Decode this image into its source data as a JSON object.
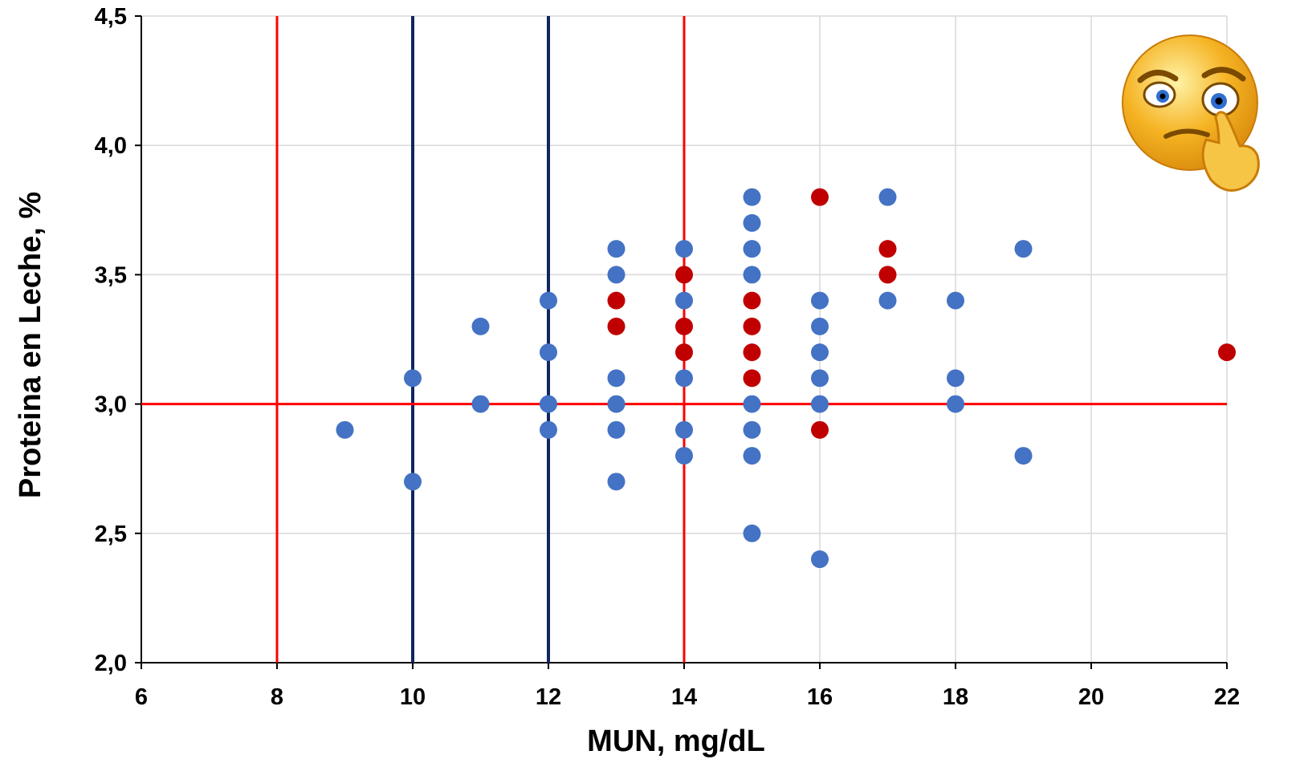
{
  "chart_data": {
    "type": "scatter",
    "title": "",
    "xlabel": "MUN, mg/dL",
    "ylabel": "Proteina en Leche, %",
    "xlim": [
      6,
      22
    ],
    "ylim": [
      2.0,
      4.5
    ],
    "x_ticks": [
      6,
      8,
      10,
      12,
      14,
      16,
      18,
      20,
      22
    ],
    "x_tick_labels": [
      "6",
      "8",
      "10",
      "12",
      "14",
      "16",
      "18",
      "20",
      "22"
    ],
    "y_ticks": [
      2.0,
      2.5,
      3.0,
      3.5,
      4.0,
      4.5
    ],
    "y_tick_labels": [
      "2,0",
      "2,5",
      "3,0",
      "3,5",
      "4,0",
      "4,5"
    ],
    "grid": true,
    "legend": "none",
    "reference_lines": [
      {
        "axis": "x",
        "value": 8,
        "color": "#ff0000"
      },
      {
        "axis": "x",
        "value": 14,
        "color": "#ff0000"
      },
      {
        "axis": "x",
        "value": 10,
        "color": "#0f2660"
      },
      {
        "axis": "x",
        "value": 12,
        "color": "#0f2660"
      },
      {
        "axis": "y",
        "value": 3.0,
        "color": "#ff0000"
      }
    ],
    "series": [
      {
        "color": "#4472c4",
        "points": [
          [
            9,
            2.9
          ],
          [
            10,
            3.1
          ],
          [
            10,
            2.7
          ],
          [
            11,
            3.3
          ],
          [
            11,
            3.0
          ],
          [
            12,
            3.4
          ],
          [
            12,
            3.2
          ],
          [
            12,
            3.0
          ],
          [
            12,
            2.9
          ],
          [
            13,
            3.6
          ],
          [
            13,
            3.5
          ],
          [
            13,
            3.1
          ],
          [
            13,
            3.0
          ],
          [
            13,
            2.9
          ],
          [
            13,
            2.7
          ],
          [
            14,
            3.6
          ],
          [
            14,
            3.4
          ],
          [
            14,
            3.1
          ],
          [
            14,
            2.9
          ],
          [
            14,
            2.8
          ],
          [
            15,
            3.8
          ],
          [
            15,
            3.7
          ],
          [
            15,
            3.6
          ],
          [
            15,
            3.5
          ],
          [
            15,
            3.0
          ],
          [
            15,
            2.9
          ],
          [
            15,
            2.8
          ],
          [
            15,
            2.5
          ],
          [
            16,
            3.4
          ],
          [
            16,
            3.3
          ],
          [
            16,
            3.2
          ],
          [
            16,
            3.1
          ],
          [
            16,
            3.0
          ],
          [
            16,
            2.4
          ],
          [
            17,
            3.8
          ],
          [
            17,
            3.4
          ],
          [
            18,
            3.4
          ],
          [
            18,
            3.1
          ],
          [
            18,
            3.0
          ],
          [
            19,
            3.6
          ],
          [
            19,
            2.8
          ]
        ]
      },
      {
        "color": "#c00000",
        "points": [
          [
            13,
            3.4
          ],
          [
            13,
            3.3
          ],
          [
            14,
            3.5
          ],
          [
            14,
            3.3
          ],
          [
            14,
            3.2
          ],
          [
            15,
            3.4
          ],
          [
            15,
            3.3
          ],
          [
            15,
            3.2
          ],
          [
            15,
            3.1
          ],
          [
            16,
            3.8
          ],
          [
            16,
            2.9
          ],
          [
            17,
            3.6
          ],
          [
            17,
            3.5
          ],
          [
            22,
            3.2
          ]
        ]
      }
    ]
  },
  "decoration": {
    "icon": "thinking-emoji-icon",
    "face_color": "#f5b323"
  }
}
